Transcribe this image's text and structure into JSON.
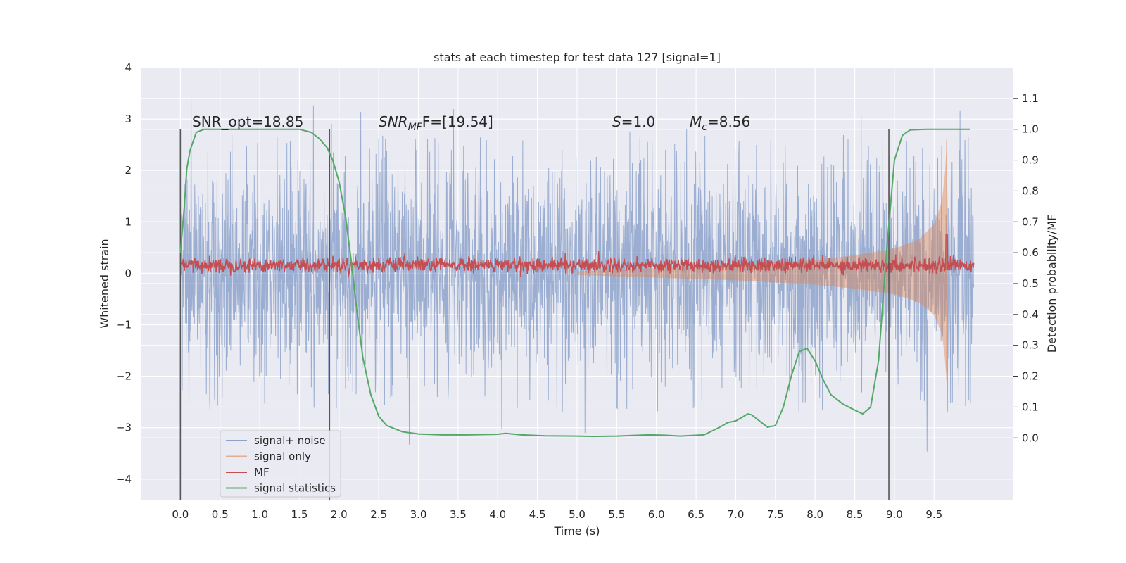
{
  "chart_data": {
    "type": "line",
    "title": "stats at each timestep for test data 127 [signal=1]",
    "xlabel": "Time (s)",
    "ylabel": "Whitened strain",
    "y2label": "Detection probability/MF",
    "xlim": [
      -0.5,
      10.5
    ],
    "ylim": [
      -4.4,
      4.0
    ],
    "y2lim": [
      -0.2,
      1.2
    ],
    "xticks": [
      0.0,
      0.5,
      1.0,
      1.5,
      2.0,
      2.5,
      3.0,
      3.5,
      4.0,
      4.5,
      5.0,
      5.5,
      6.0,
      6.5,
      7.0,
      7.5,
      8.0,
      8.5,
      9.0,
      9.5
    ],
    "xtick_labels": [
      "0.0",
      "0.5",
      "1.0",
      "1.5",
      "2.0",
      "2.5",
      "3.0",
      "3.5",
      "4.0",
      "4.5",
      "5.0",
      "5.5",
      "6.0",
      "6.5",
      "7.0",
      "7.5",
      "8.0",
      "8.5",
      "9.0",
      "9.5"
    ],
    "yticks": [
      4,
      3,
      2,
      1,
      0,
      -1,
      -2,
      -3,
      -4
    ],
    "ytick_labels": [
      "4",
      "3",
      "2",
      "1",
      "0",
      "−1",
      "−2",
      "−3",
      "−4"
    ],
    "y2ticks": [
      1.1,
      1.0,
      0.9,
      0.8,
      0.7,
      0.6,
      0.5,
      0.4,
      0.3,
      0.2,
      0.1,
      0.0
    ],
    "y2tick_labels": [
      "1.1",
      "1.0",
      "0.9",
      "0.8",
      "0.7",
      "0.6",
      "0.5",
      "0.4",
      "0.3",
      "0.2",
      "0.1",
      "0.0"
    ],
    "grid": true,
    "legend_position": "lower-left",
    "vlines": [
      0.0,
      1.88,
      8.93
    ],
    "vline_range": [
      -0.2,
      1.0
    ],
    "annotations": {
      "snr_opt": "SNR_opt=18.85",
      "snr_mf_main": "SNR",
      "snr_mf_sub": "MF",
      "snr_mf_rest": "F=[19.54]",
      "s_main": "S",
      "s_rest": "=1.0",
      "mc_main": "M",
      "mc_sub": "c",
      "mc_rest": "=8.56"
    },
    "series": [
      {
        "name": "signal+ noise",
        "color": "#4c72b0",
        "axis": "left",
        "style": "noise",
        "x_range": [
          0.0,
          10.0
        ],
        "envelope": {
          "core": 1.1,
          "peak_typical": 2.3,
          "peak_max": 3.6
        }
      },
      {
        "name": "signal only",
        "color": "#dd8452",
        "axis": "left",
        "style": "chirp",
        "merger_time": 9.66,
        "amplitude_points": [
          [
            5.0,
            0.04
          ],
          [
            6.0,
            0.1
          ],
          [
            7.0,
            0.16
          ],
          [
            8.0,
            0.26
          ],
          [
            8.5,
            0.35
          ],
          [
            9.0,
            0.48
          ],
          [
            9.3,
            0.65
          ],
          [
            9.5,
            0.95
          ],
          [
            9.6,
            1.4
          ],
          [
            9.64,
            2.0
          ],
          [
            9.66,
            2.6
          ],
          [
            9.68,
            0.1
          ],
          [
            10.0,
            0.05
          ]
        ]
      },
      {
        "name": "MF",
        "color": "#c44e52",
        "axis": "right",
        "style": "jitter",
        "x_range": [
          0.0,
          10.0
        ],
        "baseline": 0.56,
        "jitter": 0.012,
        "peak": {
          "x": 9.66,
          "y": 0.66
        }
      },
      {
        "name": "signal statistics",
        "color": "#55a868",
        "axis": "right",
        "style": "line",
        "x": [
          0.0,
          0.05,
          0.08,
          0.12,
          0.2,
          0.3,
          0.5,
          1.0,
          1.5,
          1.65,
          1.75,
          1.85,
          1.92,
          2.0,
          2.08,
          2.15,
          2.22,
          2.3,
          2.4,
          2.5,
          2.6,
          2.8,
          3.0,
          3.3,
          3.6,
          4.0,
          4.1,
          4.3,
          4.6,
          5.0,
          5.2,
          5.5,
          5.9,
          6.1,
          6.3,
          6.6,
          6.8,
          6.9,
          7.0,
          7.1,
          7.15,
          7.2,
          7.3,
          7.4,
          7.5,
          7.6,
          7.7,
          7.8,
          7.9,
          8.0,
          8.1,
          8.2,
          8.35,
          8.5,
          8.6,
          8.7,
          8.8,
          8.9,
          9.0,
          9.1,
          9.2,
          9.4,
          9.6,
          9.95
        ],
        "y": [
          0.6,
          0.75,
          0.87,
          0.93,
          0.99,
          1.0,
          1.0,
          1.0,
          1.0,
          0.99,
          0.97,
          0.94,
          0.9,
          0.83,
          0.72,
          0.58,
          0.42,
          0.26,
          0.14,
          0.07,
          0.04,
          0.02,
          0.013,
          0.01,
          0.01,
          0.012,
          0.015,
          0.01,
          0.007,
          0.006,
          0.005,
          0.006,
          0.01,
          0.009,
          0.006,
          0.01,
          0.035,
          0.05,
          0.055,
          0.07,
          0.078,
          0.075,
          0.055,
          0.035,
          0.04,
          0.1,
          0.2,
          0.28,
          0.29,
          0.25,
          0.19,
          0.14,
          0.11,
          0.09,
          0.078,
          0.1,
          0.25,
          0.6,
          0.9,
          0.98,
          0.998,
          1.0,
          1.0,
          1.0
        ]
      }
    ]
  }
}
